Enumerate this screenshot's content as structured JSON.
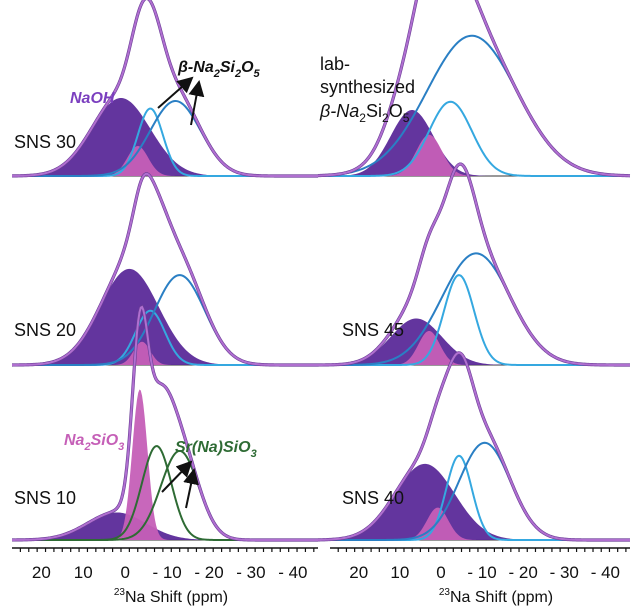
{
  "colors": {
    "total": "#b06fd0",
    "total_edge": "#6a3d96",
    "naoh": "#5b2a99",
    "na2sio3": "#c55fb7",
    "na2si2o5": "#2a7fc4",
    "na2si2o5_light": "#35a8e0",
    "srna": "#2e6b34"
  },
  "annotations": {
    "naoh": "NaOH",
    "beta_na2si2o5_prefix": "β-Na",
    "beta_na2si2o5_sub1": "2",
    "beta_na2si2o5_mid": "Si",
    "beta_na2si2o5_sub2": "2",
    "beta_na2si2o5_mid2": "O",
    "beta_na2si2o5_sub3": "5",
    "lab_line1": "lab-",
    "lab_line2": "synthesized",
    "lab_line3_prefix": "β-Na",
    "lab_line3_sub1": "2",
    "lab_line3_mid": "Si",
    "lab_line3_sub2": "2",
    "lab_line3_mid2": "O",
    "lab_line3_sub3": "5",
    "na2sio3_prefix": "Na",
    "na2sio3_sub1": "2",
    "na2sio3_mid": "SiO",
    "na2sio3_sub2": "3",
    "srna_prefix": "Sr(Na)SiO",
    "srna_sub": "3"
  },
  "axis": {
    "title_sup": "23",
    "title_rest": "Na Shift (ppm)",
    "ticks": [
      "20",
      "10",
      "0",
      "- 10",
      "- 20",
      "- 30",
      "- 40"
    ]
  },
  "chart_data": [
    {
      "type": "area",
      "label": "SNS 30",
      "xlim": [
        27,
        -46
      ],
      "x_axis_reversed": true,
      "components": [
        {
          "name": "NaOH",
          "center": 1,
          "width": 7,
          "height": 0.52
        },
        {
          "name": "Na2SiO3",
          "center": -3,
          "width": 2.5,
          "height": 0.2
        },
        {
          "name": "β-Na2Si2O5",
          "center": -6,
          "width": 3,
          "height": 0.45
        },
        {
          "name": "β-Na2Si2O5",
          "center": -12,
          "width": 6,
          "height": 0.5
        }
      ]
    },
    {
      "type": "area",
      "label": "lab-synthesized β-Na2Si2O5",
      "xlim": [
        27,
        -46
      ],
      "x_axis_reversed": true,
      "components": [
        {
          "name": "",
          "center": 5,
          "width": 5,
          "height": 0.4
        },
        {
          "name": "",
          "center": 1,
          "width": 3,
          "height": 0.25
        },
        {
          "name": "",
          "center": -4,
          "width": 5,
          "height": 0.45
        },
        {
          "name": "",
          "center": -9,
          "width": 10.5,
          "height": 0.85
        }
      ]
    },
    {
      "type": "area",
      "label": "SNS 20",
      "xlim": [
        27,
        -46
      ],
      "x_axis_reversed": true,
      "components": [
        {
          "name": "",
          "center": -1,
          "width": 7,
          "height": 0.62
        },
        {
          "name": "",
          "center": -4,
          "width": 2,
          "height": 0.15
        },
        {
          "name": "",
          "center": -6,
          "width": 3.5,
          "height": 0.35
        },
        {
          "name": "",
          "center": -13,
          "width": 6,
          "height": 0.58
        }
      ]
    },
    {
      "type": "area",
      "label": "SNS 45",
      "xlim": [
        27,
        -46
      ],
      "x_axis_reversed": true,
      "components": [
        {
          "name": "",
          "center": 4,
          "width": 6,
          "height": 0.3
        },
        {
          "name": "",
          "center": 1,
          "width": 2.5,
          "height": 0.22
        },
        {
          "name": "",
          "center": -6,
          "width": 3.5,
          "height": 0.58
        },
        {
          "name": "",
          "center": -10,
          "width": 8,
          "height": 0.72
        }
      ]
    },
    {
      "type": "area",
      "label": "SNS 10",
      "xlim": [
        27,
        -46
      ],
      "x_axis_reversed": true,
      "components": [
        {
          "name": "NaOH",
          "center": 2,
          "width": 7,
          "height": 0.17
        },
        {
          "name": "Na2SiO3",
          "center": -3.5,
          "width": 1.8,
          "height": 0.93
        },
        {
          "name": "Sr(Na)SiO3",
          "center": -7.5,
          "width": 3.5,
          "height": 0.58
        },
        {
          "name": "Sr(Na)SiO3",
          "center": -13,
          "width": 4.5,
          "height": 0.55
        }
      ]
    },
    {
      "type": "area",
      "label": "SNS 40",
      "xlim": [
        27,
        -46
      ],
      "x_axis_reversed": true,
      "components": [
        {
          "name": "",
          "center": 2,
          "width": 7,
          "height": 0.47
        },
        {
          "name": "",
          "center": -1,
          "width": 2.5,
          "height": 0.2
        },
        {
          "name": "",
          "center": -6,
          "width": 3,
          "height": 0.52
        },
        {
          "name": "",
          "center": -12,
          "width": 6,
          "height": 0.6
        }
      ]
    }
  ]
}
